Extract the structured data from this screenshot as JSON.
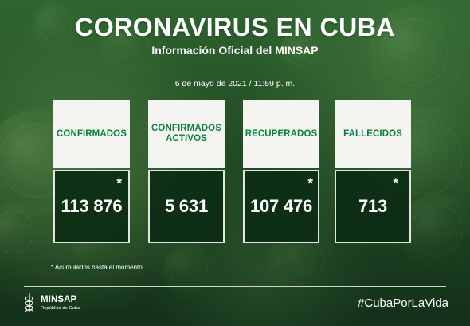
{
  "header": {
    "title": "CORONAVIRUS EN CUBA",
    "subtitle": "Información Oficial del MINSAP",
    "date": "6 de mayo de 2021 / 11:59 p. m."
  },
  "cards": [
    {
      "label": "CONFIRMADOS",
      "value": "113 876",
      "asterisk": "*"
    },
    {
      "label_line1": "CONFIRMADOS",
      "label_line2": "ACTIVOS",
      "value": "5 631"
    },
    {
      "label": "RECUPERADOS",
      "value": "107 476",
      "asterisk": "*"
    },
    {
      "label": "FALLECIDOS",
      "value": "713",
      "asterisk": "*"
    }
  ],
  "footnote": "* Acumulados hasta el momento",
  "footer": {
    "organization": "MINSAP",
    "organization_subtitle": "República de Cuba",
    "hashtag": "#CubaPorLaVida"
  },
  "icons": {
    "logo": "minsap-emblem-icon"
  },
  "colors": {
    "accent_green": "#0b7f3e",
    "panel_dark": "#0c2d13",
    "text_white": "#ffffff",
    "panel_light": "#f4f5f1"
  }
}
